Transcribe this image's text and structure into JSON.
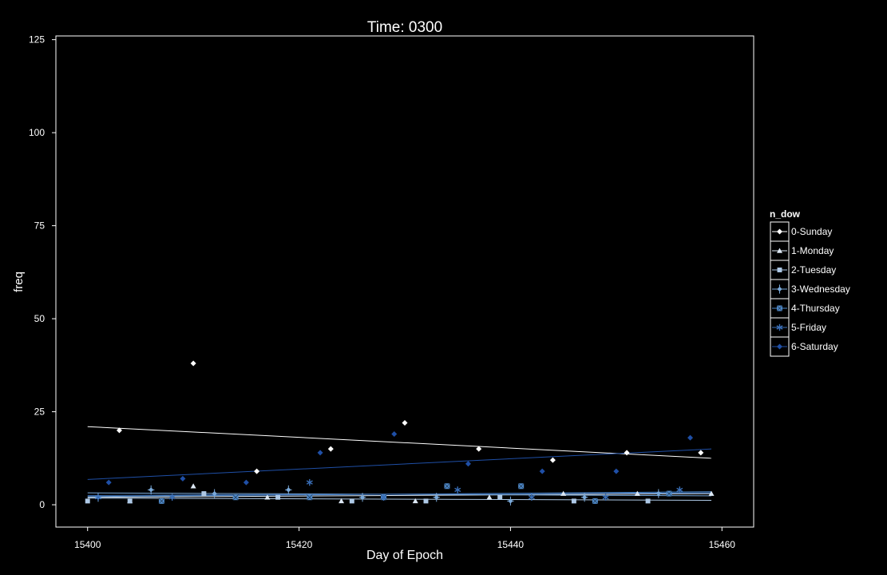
{
  "chart_data": {
    "type": "scatter",
    "title": "Time: 0300",
    "xlabel": "Day of Epoch",
    "ylabel": "freq",
    "xlim": [
      15397,
      15463
    ],
    "ylim": [
      -6,
      126
    ],
    "x_ticks": [
      15400,
      15420,
      15440,
      15460
    ],
    "y_ticks": [
      0,
      25,
      50,
      75,
      100,
      125
    ],
    "grid": false,
    "legend": {
      "title": "n_dow",
      "position": "right"
    },
    "series": [
      {
        "name": "0-Sunday",
        "color": "#ffffff",
        "marker": "diamond",
        "points": [
          [
            15403,
            20
          ],
          [
            15410,
            38
          ],
          [
            15416,
            9
          ],
          [
            15423,
            15
          ],
          [
            15430,
            22
          ],
          [
            15437,
            15
          ],
          [
            15444,
            12
          ],
          [
            15451,
            14
          ],
          [
            15458,
            14
          ]
        ],
        "trend": [
          [
            15400,
            21
          ],
          [
            15459,
            12.5
          ]
        ]
      },
      {
        "name": "1-Monday",
        "color": "#dde8f4",
        "marker": "triangle",
        "points": [
          [
            15404,
            1
          ],
          [
            15410,
            5
          ],
          [
            15417,
            2
          ],
          [
            15424,
            1
          ],
          [
            15431,
            1
          ],
          [
            15438,
            2
          ],
          [
            15445,
            3
          ],
          [
            15452,
            3
          ],
          [
            15459,
            3
          ]
        ],
        "trend": [
          [
            15400,
            2
          ],
          [
            15459,
            3
          ]
        ]
      },
      {
        "name": "2-Tuesday",
        "color": "#aec9e6",
        "marker": "square",
        "points": [
          [
            15400,
            1
          ],
          [
            15404,
            1
          ],
          [
            15411,
            3
          ],
          [
            15418,
            2
          ],
          [
            15425,
            1
          ],
          [
            15432,
            1
          ],
          [
            15439,
            2
          ],
          [
            15446,
            1
          ],
          [
            15453,
            1
          ]
        ],
        "trend": [
          [
            15400,
            1.8
          ],
          [
            15459,
            1.2
          ]
        ]
      },
      {
        "name": "3-Wednesday",
        "color": "#7aa9d9",
        "marker": "diamond-plus",
        "points": [
          [
            15401,
            2
          ],
          [
            15406,
            4
          ],
          [
            15412,
            3
          ],
          [
            15419,
            4
          ],
          [
            15426,
            2
          ],
          [
            15433,
            2
          ],
          [
            15440,
            1
          ],
          [
            15447,
            2
          ],
          [
            15454,
            3
          ]
        ],
        "trend": [
          [
            15400,
            3.2
          ],
          [
            15459,
            2.4
          ]
        ]
      },
      {
        "name": "4-Thursday",
        "color": "#4e88c7",
        "marker": "square-cross",
        "points": [
          [
            15407,
            1
          ],
          [
            15414,
            2
          ],
          [
            15421,
            2
          ],
          [
            15428,
            2
          ],
          [
            15434,
            5
          ],
          [
            15441,
            5
          ],
          [
            15448,
            1
          ],
          [
            15455,
            3
          ]
        ],
        "trend": [
          [
            15400,
            2.2
          ],
          [
            15459,
            3.5
          ]
        ]
      },
      {
        "name": "5-Friday",
        "color": "#3a6fb8",
        "marker": "asterisk",
        "points": [
          [
            15401,
            2
          ],
          [
            15408,
            2
          ],
          [
            15421,
            6
          ],
          [
            15428,
            2
          ],
          [
            15435,
            4
          ],
          [
            15442,
            2
          ],
          [
            15449,
            2
          ],
          [
            15456,
            4
          ]
        ],
        "trend": [
          [
            15400,
            2.5
          ],
          [
            15459,
            3.2
          ]
        ]
      },
      {
        "name": "6-Saturday",
        "color": "#1f4fa6",
        "marker": "diamond",
        "points": [
          [
            15402,
            6
          ],
          [
            15409,
            7
          ],
          [
            15415,
            6
          ],
          [
            15422,
            14
          ],
          [
            15429,
            19
          ],
          [
            15436,
            11
          ],
          [
            15443,
            9
          ],
          [
            15450,
            9
          ],
          [
            15457,
            18
          ]
        ],
        "trend": [
          [
            15400,
            6.8
          ],
          [
            15459,
            15
          ]
        ]
      }
    ]
  }
}
